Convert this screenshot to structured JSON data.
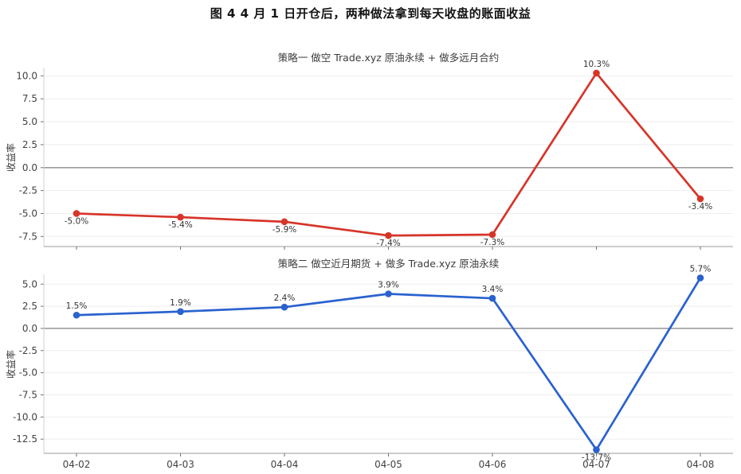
{
  "page": {
    "title": "图 4  4 月 1 日开仓后，两种做法拿到每天收盘的账面收益"
  },
  "colors": {
    "background": "#ffffff",
    "grid": "#ededf0",
    "zero_line": "#8b8b8b",
    "x_axis_line": "#9b9b9b",
    "y_axis_line": "#d0d0d0",
    "tick_mark": "#707070",
    "tick_label": "#424242",
    "data_label": "#333333",
    "series_red": "#d63529",
    "series_blue": "#2a62cf"
  },
  "chart_data": [
    {
      "type": "line",
      "title": "策略一  做空 Trade.xyz 原油永续 + 做多远月合约",
      "ylabel": "收益率",
      "xlabel": "",
      "color": "#d63529",
      "categories": [
        "04-02",
        "04-03",
        "04-04",
        "04-05",
        "04-06",
        "04-07",
        "04-08"
      ],
      "values": [
        -5.0,
        -5.4,
        -5.9,
        -7.4,
        -7.3,
        10.3,
        -3.4
      ],
      "point_labels": [
        "-5.0%",
        "-5.4%",
        "-5.9%",
        "-7.4%",
        "-7.3%",
        "10.3%",
        "-3.4%"
      ],
      "yticks": [
        10.0,
        7.5,
        5.0,
        2.5,
        0.0,
        -2.5,
        -5.0,
        -7.5
      ],
      "ytick_labels": [
        "10.0",
        "7.5",
        "5.0",
        "2.5",
        "0.0",
        "-2.5",
        "-5.0",
        "-7.5"
      ],
      "ylim": [
        -8.6,
        10.9
      ],
      "show_x_tick_labels": false,
      "grid": true,
      "zero_line": true,
      "legend": "none"
    },
    {
      "type": "line",
      "title": "策略二  做空近月期货 + 做多 Trade.xyz 原油永续",
      "ylabel": "收益率",
      "xlabel": "",
      "color": "#2a62cf",
      "categories": [
        "04-02",
        "04-03",
        "04-04",
        "04-05",
        "04-06",
        "04-07",
        "04-08"
      ],
      "values": [
        1.5,
        1.9,
        2.4,
        3.9,
        3.4,
        -13.7,
        5.7
      ],
      "point_labels": [
        "1.5%",
        "1.9%",
        "2.4%",
        "3.9%",
        "3.4%",
        "-13.7%",
        "5.7%"
      ],
      "yticks": [
        5.0,
        2.5,
        0.0,
        -2.5,
        -5.0,
        -7.5,
        -10.0,
        -12.5
      ],
      "ytick_labels": [
        "5.0",
        "2.5",
        "0.0",
        "-2.5",
        "-5.0",
        "-7.5",
        "-10.0",
        "-12.5"
      ],
      "ylim": [
        -14.1,
        6.1
      ],
      "show_x_tick_labels": true,
      "grid": true,
      "zero_line": true,
      "legend": "none"
    }
  ]
}
